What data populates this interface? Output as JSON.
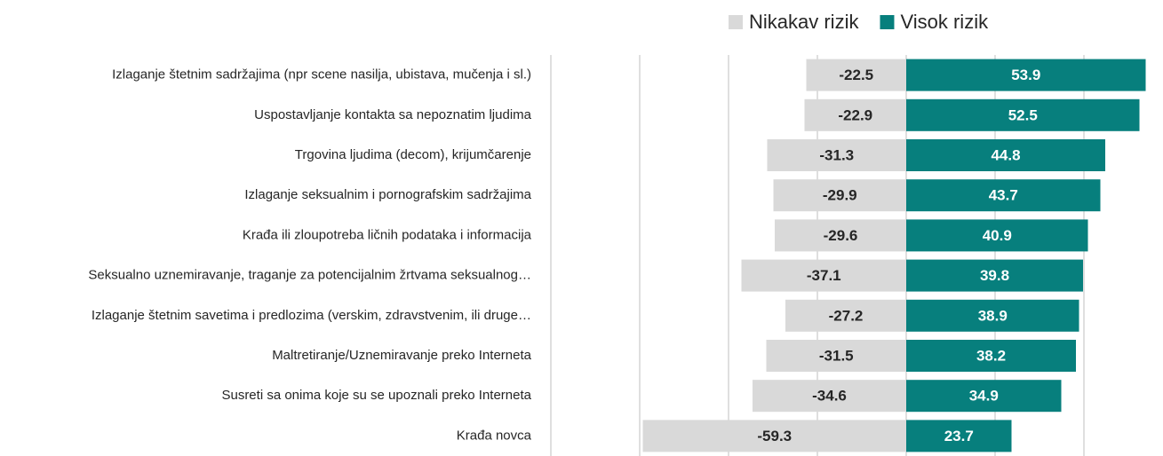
{
  "chart_data": {
    "type": "diverging_bar",
    "categories": [
      "Izlaganje štetnim sadržajima (npr scene nasilja, ubistava, mučenja i sl.)",
      "Uspostavljanje kontakta sa nepoznatim ljudima",
      "Trgovina ljudima (decom), krijumčarenje",
      "Izlaganje seksualnim i pornografskim sadržajima",
      "Krađa ili zloupotreba ličnih podataka i informacija",
      "Seksualno uznemiravanje, traganje za potencijalnim žrtvama seksualnog…",
      "Izlaganje štetnim savetima i predlozima (verskim, zdravstvenim, ili druge…",
      "Maltretiranje/Uznemiravanje preko Interneta",
      "Susreti sa onima koje su se upoznali preko Interneta",
      "Krađa novca"
    ],
    "series": [
      {
        "name": "Nikakav rizik",
        "color": "#d9d9d9",
        "label_color": "#262626",
        "values": [
          -22.5,
          -22.9,
          -31.3,
          -29.9,
          -29.6,
          -37.1,
          -27.2,
          -31.5,
          -34.6,
          -59.3
        ]
      },
      {
        "name": "Visok rizik",
        "color": "#077f7d",
        "label_color": "#ffffff",
        "values": [
          53.9,
          52.5,
          44.8,
          43.7,
          40.9,
          39.8,
          38.9,
          38.2,
          34.9,
          23.7
        ]
      }
    ],
    "xlim": [
      -80,
      57.6
    ],
    "xticks": [
      -60,
      -40,
      -20,
      0,
      20,
      40
    ],
    "grid": true,
    "legend": "top"
  }
}
